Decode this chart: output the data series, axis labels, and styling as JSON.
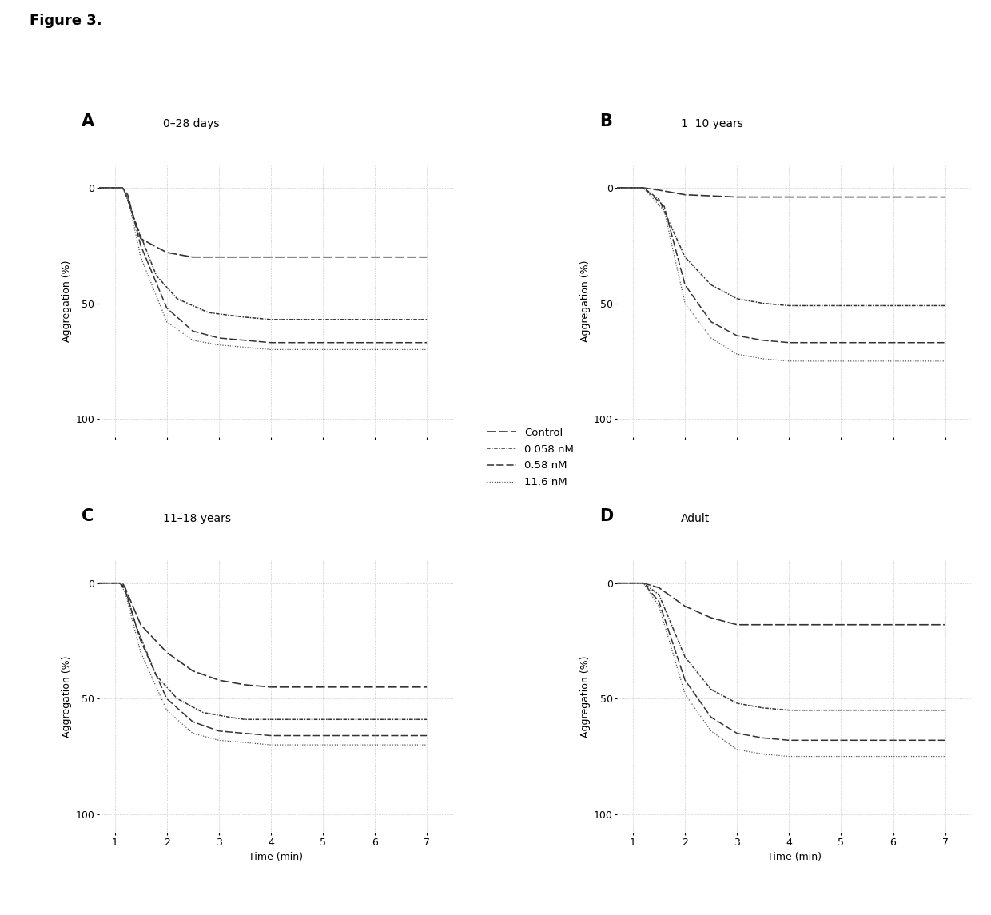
{
  "figure_title": "Figure 3.",
  "panels": [
    {
      "label": "A",
      "subtitle": "0–28 days"
    },
    {
      "label": "B",
      "subtitle": "1  10 years"
    },
    {
      "label": "C",
      "subtitle": "11–18 years"
    },
    {
      "label": "D",
      "subtitle": "Adult"
    }
  ],
  "legend_labels": [
    "Control",
    "0.058 nM",
    "0.58 nM",
    "11.6 nM"
  ],
  "ylabel": "Aggregation (%)",
  "xlabel": "Time (min)",
  "yticks": [
    0,
    50,
    100
  ],
  "xticks": [
    1,
    2,
    3,
    4,
    5,
    6,
    7
  ],
  "ylim": [
    108,
    -10
  ],
  "xlim": [
    0.7,
    7.5
  ],
  "curves": {
    "A": {
      "control": {
        "x": [
          0.7,
          1.0,
          1.15,
          1.18,
          1.25,
          1.5,
          2.0,
          2.5,
          3.0,
          4.0,
          5.0,
          6.0,
          7.0
        ],
        "y": [
          0,
          0,
          0,
          1,
          5,
          22,
          28,
          30,
          30,
          30,
          30,
          30,
          30
        ]
      },
      "low": {
        "x": [
          0.7,
          1.0,
          1.15,
          1.2,
          1.4,
          1.8,
          2.2,
          2.8,
          3.5,
          4.0,
          5.0,
          6.0,
          7.0
        ],
        "y": [
          0,
          0,
          0,
          2,
          15,
          38,
          48,
          54,
          56,
          57,
          57,
          57,
          57
        ]
      },
      "mid": {
        "x": [
          0.7,
          1.0,
          1.15,
          1.25,
          1.5,
          2.0,
          2.5,
          3.0,
          3.5,
          4.0,
          5.0,
          6.0,
          7.0
        ],
        "y": [
          0,
          0,
          0,
          3,
          25,
          52,
          62,
          65,
          66,
          67,
          67,
          67,
          67
        ]
      },
      "high": {
        "x": [
          0.7,
          1.0,
          1.15,
          1.25,
          1.5,
          2.0,
          2.5,
          3.0,
          3.5,
          4.0,
          5.0,
          6.0,
          7.0
        ],
        "y": [
          0,
          0,
          0,
          4,
          30,
          58,
          66,
          68,
          69,
          70,
          70,
          70,
          70
        ]
      }
    },
    "B": {
      "control": {
        "x": [
          0.7,
          1.0,
          1.2,
          1.5,
          2.0,
          3.0,
          4.0,
          5.0,
          6.0,
          7.0
        ],
        "y": [
          0,
          0,
          0,
          1,
          3,
          4,
          4,
          4,
          4,
          4
        ]
      },
      "low": {
        "x": [
          0.7,
          1.0,
          1.2,
          1.5,
          2.0,
          2.5,
          3.0,
          3.5,
          4.0,
          5.0,
          6.0,
          7.0
        ],
        "y": [
          0,
          0,
          0,
          5,
          30,
          42,
          48,
          50,
          51,
          51,
          51,
          51
        ]
      },
      "mid": {
        "x": [
          0.7,
          1.0,
          1.2,
          1.6,
          2.0,
          2.5,
          3.0,
          3.5,
          4.0,
          5.0,
          6.0,
          7.0
        ],
        "y": [
          0,
          0,
          0,
          8,
          42,
          58,
          64,
          66,
          67,
          67,
          67,
          67
        ]
      },
      "high": {
        "x": [
          0.7,
          1.0,
          1.2,
          1.6,
          2.0,
          2.5,
          3.0,
          3.5,
          4.0,
          5.0,
          6.0,
          7.0
        ],
        "y": [
          0,
          0,
          0,
          10,
          50,
          65,
          72,
          74,
          75,
          75,
          75,
          75
        ]
      }
    },
    "C": {
      "control": {
        "x": [
          0.7,
          1.0,
          1.1,
          1.15,
          1.2,
          1.5,
          2.0,
          2.5,
          3.0,
          3.5,
          4.0,
          5.0,
          6.0,
          7.0
        ],
        "y": [
          0,
          0,
          0,
          0,
          2,
          18,
          30,
          38,
          42,
          44,
          45,
          45,
          45,
          45
        ]
      },
      "low": {
        "x": [
          0.7,
          1.0,
          1.1,
          1.2,
          1.4,
          1.8,
          2.2,
          2.7,
          3.2,
          3.5,
          4.0,
          5.0,
          6.0,
          7.0
        ],
        "y": [
          0,
          0,
          0,
          2,
          18,
          40,
          50,
          56,
          58,
          59,
          59,
          59,
          59,
          59
        ]
      },
      "mid": {
        "x": [
          0.7,
          1.0,
          1.1,
          1.2,
          1.5,
          2.0,
          2.5,
          3.0,
          3.5,
          4.0,
          5.0,
          6.0,
          7.0
        ],
        "y": [
          0,
          0,
          0,
          3,
          25,
          50,
          60,
          64,
          65,
          66,
          66,
          66,
          66
        ]
      },
      "high": {
        "x": [
          0.7,
          1.0,
          1.1,
          1.2,
          1.5,
          2.0,
          2.5,
          3.0,
          3.5,
          4.0,
          5.0,
          6.0,
          7.0
        ],
        "y": [
          0,
          0,
          0,
          4,
          30,
          55,
          65,
          68,
          69,
          70,
          70,
          70,
          70
        ]
      }
    },
    "D": {
      "control": {
        "x": [
          0.7,
          1.0,
          1.2,
          1.5,
          2.0,
          2.5,
          3.0,
          4.0,
          5.0,
          6.0,
          7.0
        ],
        "y": [
          0,
          0,
          0,
          2,
          10,
          15,
          18,
          18,
          18,
          18,
          18
        ]
      },
      "low": {
        "x": [
          0.7,
          1.0,
          1.2,
          1.5,
          2.0,
          2.5,
          3.0,
          3.5,
          4.0,
          5.0,
          6.0,
          7.0
        ],
        "y": [
          0,
          0,
          0,
          5,
          32,
          46,
          52,
          54,
          55,
          55,
          55,
          55
        ]
      },
      "mid": {
        "x": [
          0.7,
          1.0,
          1.2,
          1.5,
          2.0,
          2.5,
          3.0,
          3.5,
          4.0,
          5.0,
          6.0,
          7.0
        ],
        "y": [
          0,
          0,
          0,
          8,
          42,
          58,
          65,
          67,
          68,
          68,
          68,
          68
        ]
      },
      "high": {
        "x": [
          0.7,
          1.0,
          1.2,
          1.5,
          2.0,
          2.5,
          3.0,
          3.5,
          4.0,
          5.0,
          6.0,
          7.0
        ],
        "y": [
          0,
          0,
          0,
          10,
          48,
          64,
          72,
          74,
          75,
          75,
          75,
          75
        ]
      }
    }
  }
}
